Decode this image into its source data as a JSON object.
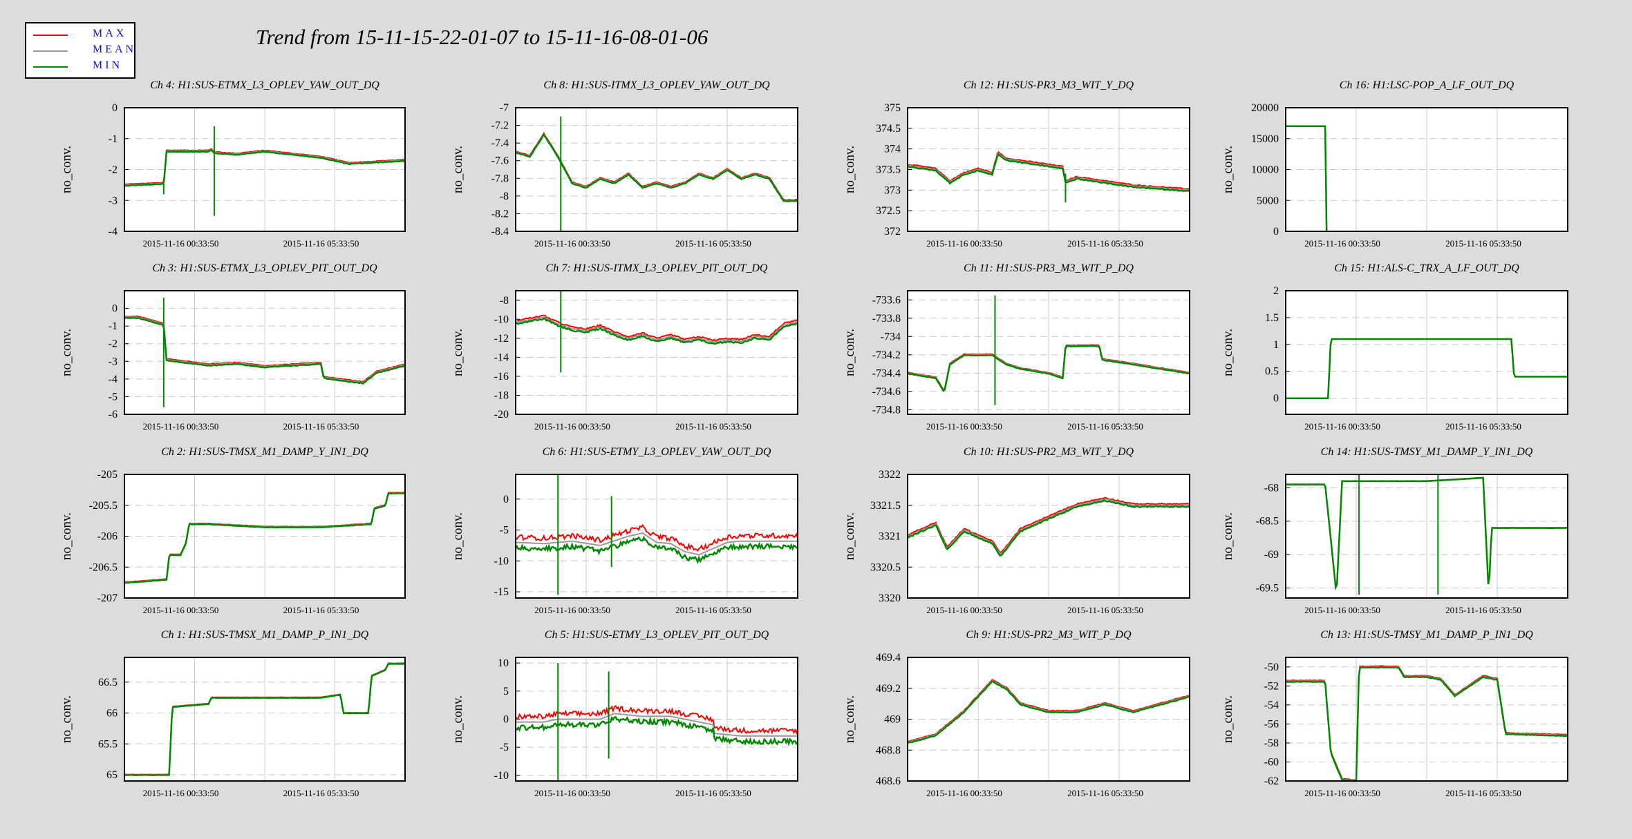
{
  "title": "Trend from 15-11-15-22-01-07 to 15-11-16-08-01-06",
  "legend": [
    {
      "label": "MAX",
      "color": "#ff0000"
    },
    {
      "label": "MEAN",
      "color": "#999999"
    },
    {
      "label": "MIN",
      "color": "#008800"
    }
  ],
  "chart_data": [
    {
      "type": "line",
      "title": "Ch 4: H1:SUS-ETMX_L3_OPLEV_YAW_OUT_DQ",
      "ylabel": "no_conv.",
      "ylim": [
        -4,
        0
      ],
      "yticks": [
        "0",
        "-1",
        "-2",
        "-3",
        "-4"
      ],
      "xticks": [
        "2015-11-16 00:33:50",
        "2015-11-16 05:33:50"
      ],
      "series": [
        {
          "x": [
            0,
            0.14,
            0.15,
            0.3,
            0.31,
            0.32,
            0.4,
            0.5,
            0.6,
            0.7,
            0.8,
            0.9,
            1.0
          ],
          "values": [
            -2.5,
            -2.45,
            -1.4,
            -1.4,
            -1.35,
            -1.45,
            -1.5,
            -1.4,
            -1.5,
            -1.6,
            -1.8,
            -1.75,
            -1.7
          ],
          "spikes": [
            {
              "x": 0.32,
              "min": -3.5,
              "max": -0.6
            },
            {
              "x": 0.14,
              "min": -2.8,
              "max": -2.4
            }
          ],
          "noise": 0.05
        }
      ]
    },
    {
      "type": "line",
      "title": "Ch 8: H1:SUS-ITMX_L3_OPLEV_YAW_OUT_DQ",
      "ylabel": "no_conv.",
      "ylim": [
        -8.4,
        -7
      ],
      "yticks": [
        "-7",
        "-7.2",
        "-7.4",
        "-7.6",
        "-7.8",
        "-8",
        "-8.2",
        "-8.4"
      ],
      "xticks": [
        "2015-11-16 00:33:50",
        "2015-11-16 05:33:50"
      ],
      "series": [
        {
          "x": [
            0,
            0.05,
            0.1,
            0.15,
            0.2,
            0.25,
            0.3,
            0.35,
            0.4,
            0.45,
            0.5,
            0.55,
            0.6,
            0.65,
            0.7,
            0.75,
            0.8,
            0.85,
            0.9,
            0.95,
            1.0
          ],
          "values": [
            -7.5,
            -7.55,
            -7.3,
            -7.55,
            -7.85,
            -7.9,
            -7.8,
            -7.85,
            -7.75,
            -7.9,
            -7.85,
            -7.9,
            -7.85,
            -7.75,
            -7.8,
            -7.7,
            -7.8,
            -7.75,
            -7.8,
            -8.05,
            -8.05
          ],
          "spikes": [
            {
              "x": 0.16,
              "min": -8.4,
              "max": -7.1
            }
          ],
          "noise": 0.05
        }
      ]
    },
    {
      "type": "line",
      "title": "Ch 12: H1:SUS-PR3_M3_WIT_Y_DQ",
      "ylabel": "no_conv.",
      "ylim": [
        372,
        375
      ],
      "yticks": [
        "375",
        "374.5",
        "374",
        "373.5",
        "373",
        "372.5",
        "372"
      ],
      "xticks": [
        "2015-11-16 00:33:50",
        "2015-11-16 05:33:50"
      ],
      "series": [
        {
          "x": [
            0,
            0.1,
            0.15,
            0.2,
            0.25,
            0.3,
            0.32,
            0.35,
            0.4,
            0.5,
            0.55,
            0.56,
            0.6,
            0.7,
            0.8,
            0.9,
            1.0
          ],
          "values": [
            373.6,
            373.5,
            373.2,
            373.4,
            373.5,
            373.4,
            373.9,
            373.75,
            373.7,
            373.6,
            373.55,
            373.2,
            373.3,
            373.2,
            373.1,
            373.05,
            373.0
          ],
          "spikes": [
            {
              "x": 0.56,
              "min": 372.7,
              "max": 373.4
            }
          ],
          "noise": 0.08
        }
      ]
    },
    {
      "type": "line",
      "title": "Ch 16: H1:LSC-POP_A_LF_OUT_DQ",
      "ylabel": "no_conv.",
      "ylim": [
        0,
        20000
      ],
      "yticks": [
        "20000",
        "15000",
        "10000",
        "5000",
        "0"
      ],
      "xticks": [
        "2015-11-16 00:33:50",
        "2015-11-16 05:33:50"
      ],
      "series": [
        {
          "x": [
            0,
            0.14,
            0.145
          ],
          "values": [
            17000,
            17000,
            0
          ],
          "spikes": [],
          "noise": 0
        }
      ]
    },
    {
      "type": "line",
      "title": "Ch 3: H1:SUS-ETMX_L3_OPLEV_PIT_OUT_DQ",
      "ylabel": "no_conv.",
      "ylim": [
        -6,
        1
      ],
      "yticks": [
        "0",
        "-1",
        "-2",
        "-3",
        "-4",
        "-5",
        "-6"
      ],
      "xticks": [
        "2015-11-16 00:33:50",
        "2015-11-16 05:33:50"
      ],
      "series": [
        {
          "x": [
            0,
            0.05,
            0.14,
            0.15,
            0.2,
            0.3,
            0.4,
            0.5,
            0.6,
            0.7,
            0.71,
            0.8,
            0.85,
            0.9,
            1.0
          ],
          "values": [
            -0.5,
            -0.5,
            -0.9,
            -2.9,
            -3.0,
            -3.2,
            -3.1,
            -3.3,
            -3.2,
            -3.1,
            -3.9,
            -4.1,
            -4.2,
            -3.6,
            -3.2
          ],
          "spikes": [
            {
              "x": 0.14,
              "min": -5.6,
              "max": 0.6
            }
          ],
          "noise": 0.06
        }
      ]
    },
    {
      "type": "line",
      "title": "Ch 7: H1:SUS-ITMX_L3_OPLEV_PIT_OUT_DQ",
      "ylabel": "no_conv.",
      "ylim": [
        -20,
        -7
      ],
      "yticks": [
        "-8",
        "-10",
        "-12",
        "-14",
        "-16",
        "-18",
        "-20"
      ],
      "xticks": [
        "2015-11-16 00:33:50",
        "2015-11-16 05:33:50"
      ],
      "series": [
        {
          "x": [
            0,
            0.1,
            0.15,
            0.2,
            0.25,
            0.3,
            0.35,
            0.4,
            0.45,
            0.5,
            0.55,
            0.6,
            0.65,
            0.7,
            0.75,
            0.8,
            0.85,
            0.9,
            0.95,
            1.0
          ],
          "values": [
            -10.3,
            -9.8,
            -10.5,
            -11,
            -11.2,
            -10.8,
            -11.5,
            -12,
            -11.6,
            -12.2,
            -11.8,
            -12.3,
            -12,
            -12.4,
            -12.2,
            -12.3,
            -11.8,
            -12,
            -10.6,
            -10.3
          ],
          "spikes": [
            {
              "x": 0.16,
              "min": -15.6,
              "max": -7.0
            }
          ],
          "noise": 0.12
        }
      ]
    },
    {
      "type": "line",
      "title": "Ch 11: H1:SUS-PR3_M3_WIT_P_DQ",
      "ylabel": "no_conv.",
      "ylim": [
        -734.85,
        -733.5
      ],
      "yticks": [
        "-733.6",
        "-733.8",
        "-734",
        "-734.2",
        "-734.4",
        "-734.6",
        "-734.8"
      ],
      "xticks": [
        "2015-11-16 00:33:50",
        "2015-11-16 05:33:50"
      ],
      "series": [
        {
          "x": [
            0,
            0.1,
            0.13,
            0.15,
            0.2,
            0.3,
            0.35,
            0.4,
            0.5,
            0.55,
            0.56,
            0.68,
            0.69,
            0.8,
            0.9,
            1.0
          ],
          "values": [
            -734.4,
            -734.45,
            -734.6,
            -734.3,
            -734.2,
            -734.2,
            -734.3,
            -734.35,
            -734.4,
            -734.45,
            -734.1,
            -734.1,
            -734.25,
            -734.3,
            -734.35,
            -734.4
          ],
          "spikes": [
            {
              "x": 0.31,
              "min": -734.75,
              "max": -733.55
            }
          ],
          "noise": 0.04
        }
      ]
    },
    {
      "type": "line",
      "title": "Ch 15: H1:ALS-C_TRX_A_LF_OUT_DQ",
      "ylabel": "no_conv.",
      "ylim": [
        -0.3,
        2
      ],
      "yticks": [
        "2",
        "1.5",
        "1",
        "0.5",
        "0"
      ],
      "xticks": [
        "2015-11-16 00:33:50",
        "2015-11-16 05:33:50"
      ],
      "series": [
        {
          "x": [
            0,
            0.15,
            0.16,
            0.8,
            0.81,
            1.0
          ],
          "values": [
            0,
            0,
            1.1,
            1.1,
            0.4,
            0.4
          ],
          "spikes": [],
          "noise": 0
        }
      ]
    },
    {
      "type": "line",
      "title": "Ch 2: H1:SUS-TMSX_M1_DAMP_Y_IN1_DQ",
      "ylabel": "no_conv.",
      "ylim": [
        -207,
        -205
      ],
      "yticks": [
        "-205",
        "-205.5",
        "-206",
        "-206.5",
        "-207"
      ],
      "xticks": [
        "2015-11-16 00:33:50",
        "2015-11-16 05:33:50"
      ],
      "series": [
        {
          "x": [
            0,
            0.15,
            0.16,
            0.2,
            0.22,
            0.23,
            0.3,
            0.5,
            0.7,
            0.88,
            0.89,
            0.93,
            0.94,
            1.0
          ],
          "values": [
            -206.75,
            -206.7,
            -206.3,
            -206.3,
            -206.1,
            -205.8,
            -205.8,
            -205.85,
            -205.85,
            -205.8,
            -205.55,
            -205.5,
            -205.3,
            -205.3
          ],
          "spikes": [],
          "noise": 0.03
        }
      ]
    },
    {
      "type": "line",
      "title": "Ch 6: H1:SUS-ETMY_L3_OPLEV_YAW_OUT_DQ",
      "ylabel": "no_conv.",
      "ylim": [
        -16,
        4
      ],
      "yticks": [
        "0",
        "-5",
        "-10",
        "-15"
      ],
      "xticks": [
        "2015-11-16 00:33:50",
        "2015-11-16 05:33:50"
      ],
      "series": [
        {
          "x": [
            0,
            0.1,
            0.15,
            0.2,
            0.3,
            0.4,
            0.45,
            0.5,
            0.55,
            0.6,
            0.65,
            0.7,
            0.75,
            0.8,
            1.0
          ],
          "values": [
            -7,
            -7.2,
            -7,
            -6.8,
            -7.5,
            -6,
            -5.5,
            -7,
            -7.2,
            -8.5,
            -9,
            -8,
            -7,
            -6.8,
            -6.8
          ],
          "spikes": [
            {
              "x": 0.15,
              "min": -15.5,
              "max": 4
            },
            {
              "x": 0.34,
              "min": -11,
              "max": 0.5
            }
          ],
          "noise": 0.4
        }
      ]
    },
    {
      "type": "line",
      "title": "Ch 10: H1:SUS-PR2_M3_WIT_Y_DQ",
      "ylabel": "no_conv.",
      "ylim": [
        3320,
        3322
      ],
      "yticks": [
        "3322",
        "3321.5",
        "3321",
        "3320.5",
        "3320"
      ],
      "xticks": [
        "2015-11-16 00:33:50",
        "2015-11-16 05:33:50"
      ],
      "series": [
        {
          "x": [
            0,
            0.1,
            0.14,
            0.2,
            0.3,
            0.33,
            0.4,
            0.5,
            0.6,
            0.7,
            0.8,
            0.9,
            1.0
          ],
          "values": [
            3321,
            3321.2,
            3320.8,
            3321.1,
            3320.9,
            3320.7,
            3321.1,
            3321.3,
            3321.5,
            3321.6,
            3321.5,
            3321.5,
            3321.5
          ],
          "spikes": [],
          "noise": 0.1
        }
      ]
    },
    {
      "type": "line",
      "title": "Ch 14: H1:SUS-TMSY_M1_DAMP_Y_IN1_DQ",
      "ylabel": "no_conv.",
      "ylim": [
        -69.65,
        -67.8
      ],
      "yticks": [
        "-68",
        "-68.5",
        "-69",
        "-69.5"
      ],
      "xticks": [
        "2015-11-16 00:33:50",
        "2015-11-16 05:33:50"
      ],
      "series": [
        {
          "x": [
            0,
            0.14,
            0.18,
            0.2,
            0.5,
            0.7,
            0.72,
            0.73,
            1.0
          ],
          "values": [
            -67.95,
            -67.95,
            -69.6,
            -67.9,
            -67.9,
            -67.85,
            -69.6,
            -68.6,
            -68.6
          ],
          "spikes": [
            {
              "x": 0.26,
              "min": -69.6,
              "max": -67.8
            },
            {
              "x": 0.54,
              "min": -69.6,
              "max": -67.8
            }
          ],
          "noise": 0.01
        }
      ]
    },
    {
      "type": "line",
      "title": "Ch 1: H1:SUS-TMSX_M1_DAMP_P_IN1_DQ",
      "ylabel": "no_conv.",
      "ylim": [
        64.9,
        66.9
      ],
      "yticks": [
        "66.5",
        "66",
        "65.5",
        "65"
      ],
      "xticks": [
        "2015-11-16 00:33:50",
        "2015-11-16 05:33:50"
      ],
      "series": [
        {
          "x": [
            0,
            0.16,
            0.17,
            0.3,
            0.31,
            0.5,
            0.7,
            0.77,
            0.78,
            0.87,
            0.88,
            0.93,
            0.94,
            1.0
          ],
          "values": [
            65,
            65,
            66.1,
            66.15,
            66.25,
            66.25,
            66.25,
            66.3,
            66,
            66,
            66.6,
            66.7,
            66.8,
            66.8
          ],
          "spikes": [],
          "noise": 0.02
        }
      ]
    },
    {
      "type": "line",
      "title": "Ch 5: H1:SUS-ETMY_L3_OPLEV_PIT_OUT_DQ",
      "ylabel": "no_conv.",
      "ylim": [
        -11,
        11
      ],
      "yticks": [
        "10",
        "5",
        "0",
        "-5",
        "-10"
      ],
      "xticks": [
        "2015-11-16 00:33:50",
        "2015-11-16 05:33:50"
      ],
      "series": [
        {
          "x": [
            0,
            0.1,
            0.15,
            0.3,
            0.35,
            0.45,
            0.55,
            0.6,
            0.7,
            0.7,
            0.8,
            0.9,
            1.0
          ],
          "values": [
            -0.5,
            -0.5,
            0,
            0,
            1,
            0.5,
            0.5,
            0,
            -1,
            -2.5,
            -3,
            -3,
            -3
          ],
          "spikes": [
            {
              "x": 0.15,
              "min": -11,
              "max": 10
            },
            {
              "x": 0.33,
              "min": -7,
              "max": 8.5
            }
          ],
          "noise": 0.4
        }
      ]
    },
    {
      "type": "line",
      "title": "Ch 9: H1:SUS-PR2_M3_WIT_P_DQ",
      "ylabel": "no_conv.",
      "ylim": [
        468.6,
        469.4
      ],
      "yticks": [
        "469.4",
        "469.2",
        "469",
        "468.8",
        "468.6"
      ],
      "xticks": [
        "2015-11-16 00:33:50",
        "2015-11-16 05:33:50"
      ],
      "series": [
        {
          "x": [
            0,
            0.1,
            0.2,
            0.3,
            0.35,
            0.4,
            0.5,
            0.6,
            0.7,
            0.8,
            0.9,
            1.0
          ],
          "values": [
            468.85,
            468.9,
            469.05,
            469.25,
            469.2,
            469.1,
            469.05,
            469.05,
            469.1,
            469.05,
            469.1,
            469.15
          ],
          "spikes": [],
          "noise": 0.06
        }
      ]
    },
    {
      "type": "line",
      "title": "Ch 13: H1:SUS-TMSY_M1_DAMP_P_IN1_DQ",
      "ylabel": "no_conv.",
      "ylim": [
        -62,
        -49
      ],
      "yticks": [
        "-50",
        "-52",
        "-54",
        "-56",
        "-58",
        "-60",
        "-62"
      ],
      "xticks": [
        "2015-11-16 00:33:50",
        "2015-11-16 05:33:50"
      ],
      "series": [
        {
          "x": [
            0,
            0.14,
            0.16,
            0.2,
            0.25,
            0.26,
            0.4,
            0.42,
            0.5,
            0.55,
            0.6,
            0.7,
            0.75,
            0.78,
            1.0
          ],
          "values": [
            -51.5,
            -51.5,
            -59,
            -61.8,
            -62,
            -50,
            -50,
            -51,
            -51,
            -51.3,
            -53,
            -51,
            -51.3,
            -57,
            -57.2
          ],
          "spikes": [],
          "noise": 0.05
        }
      ]
    }
  ]
}
